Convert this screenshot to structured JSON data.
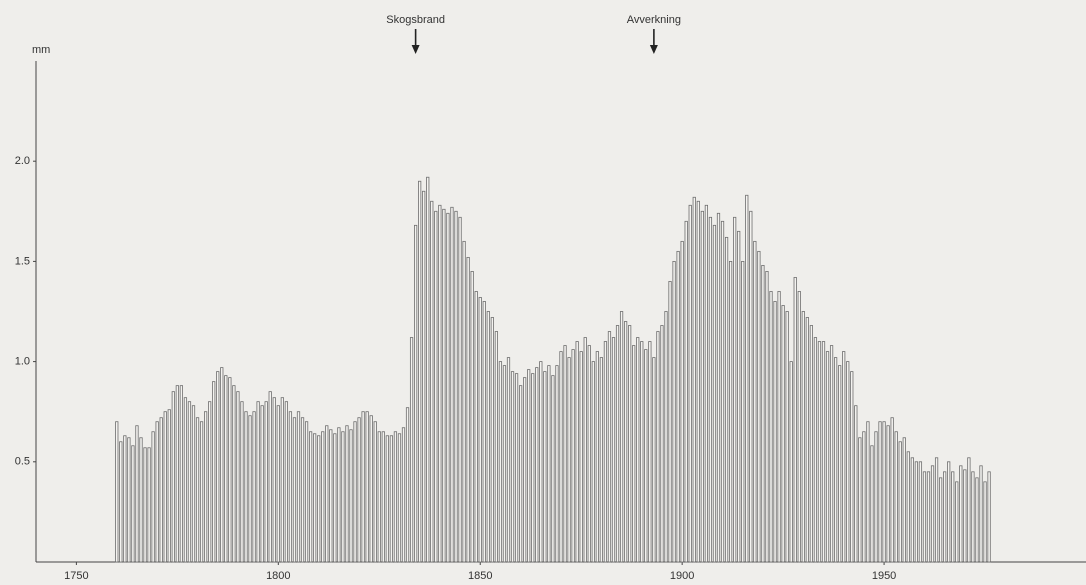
{
  "chart_data": {
    "type": "bar",
    "ylabel": "mm",
    "x": [
      1760,
      1761,
      1762,
      1763,
      1764,
      1765,
      1766,
      1767,
      1768,
      1769,
      1770,
      1771,
      1772,
      1773,
      1774,
      1775,
      1776,
      1777,
      1778,
      1779,
      1780,
      1781,
      1782,
      1783,
      1784,
      1785,
      1786,
      1787,
      1788,
      1789,
      1790,
      1791,
      1792,
      1793,
      1794,
      1795,
      1796,
      1797,
      1798,
      1799,
      1800,
      1801,
      1802,
      1803,
      1804,
      1805,
      1806,
      1807,
      1808,
      1809,
      1810,
      1811,
      1812,
      1813,
      1814,
      1815,
      1816,
      1817,
      1818,
      1819,
      1820,
      1821,
      1822,
      1823,
      1824,
      1825,
      1826,
      1827,
      1828,
      1829,
      1830,
      1831,
      1832,
      1833,
      1834,
      1835,
      1836,
      1837,
      1838,
      1839,
      1840,
      1841,
      1842,
      1843,
      1844,
      1845,
      1846,
      1847,
      1848,
      1849,
      1850,
      1851,
      1852,
      1853,
      1854,
      1855,
      1856,
      1857,
      1858,
      1859,
      1860,
      1861,
      1862,
      1863,
      1864,
      1865,
      1866,
      1867,
      1868,
      1869,
      1870,
      1871,
      1872,
      1873,
      1874,
      1875,
      1876,
      1877,
      1878,
      1879,
      1880,
      1881,
      1882,
      1883,
      1884,
      1885,
      1886,
      1887,
      1888,
      1889,
      1890,
      1891,
      1892,
      1893,
      1894,
      1895,
      1896,
      1897,
      1898,
      1899,
      1900,
      1901,
      1902,
      1903,
      1904,
      1905,
      1906,
      1907,
      1908,
      1909,
      1910,
      1911,
      1912,
      1913,
      1914,
      1915,
      1916,
      1917,
      1918,
      1919,
      1920,
      1921,
      1922,
      1923,
      1924,
      1925,
      1926,
      1927,
      1928,
      1929,
      1930,
      1931,
      1932,
      1933,
      1934,
      1935,
      1936,
      1937,
      1938,
      1939,
      1940,
      1941,
      1942,
      1943,
      1944,
      1945,
      1946,
      1947,
      1948,
      1949,
      1950,
      1951,
      1952,
      1953,
      1954,
      1955,
      1956,
      1957,
      1958,
      1959,
      1960,
      1961,
      1962,
      1963,
      1964,
      1965,
      1966,
      1967,
      1968,
      1969,
      1970,
      1971,
      1972,
      1973,
      1974,
      1975,
      1976
    ],
    "values": [
      0.7,
      0.6,
      0.63,
      0.62,
      0.58,
      0.68,
      0.62,
      0.57,
      0.57,
      0.65,
      0.7,
      0.72,
      0.75,
      0.76,
      0.85,
      0.88,
      0.88,
      0.82,
      0.8,
      0.78,
      0.72,
      0.7,
      0.75,
      0.8,
      0.9,
      0.95,
      0.97,
      0.93,
      0.92,
      0.88,
      0.85,
      0.8,
      0.75,
      0.73,
      0.75,
      0.8,
      0.78,
      0.8,
      0.85,
      0.82,
      0.78,
      0.82,
      0.8,
      0.75,
      0.72,
      0.75,
      0.72,
      0.7,
      0.65,
      0.64,
      0.63,
      0.65,
      0.68,
      0.66,
      0.64,
      0.67,
      0.65,
      0.68,
      0.66,
      0.7,
      0.72,
      0.75,
      0.75,
      0.73,
      0.7,
      0.65,
      0.65,
      0.63,
      0.63,
      0.65,
      0.64,
      0.67,
      0.77,
      1.12,
      1.68,
      1.9,
      1.85,
      1.92,
      1.8,
      1.75,
      1.78,
      1.76,
      1.74,
      1.77,
      1.75,
      1.72,
      1.6,
      1.52,
      1.45,
      1.35,
      1.32,
      1.3,
      1.25,
      1.22,
      1.15,
      1.0,
      0.98,
      1.02,
      0.95,
      0.94,
      0.88,
      0.92,
      0.96,
      0.94,
      0.97,
      1.0,
      0.95,
      0.98,
      0.93,
      0.98,
      1.05,
      1.08,
      1.02,
      1.06,
      1.1,
      1.05,
      1.12,
      1.08,
      1.0,
      1.05,
      1.02,
      1.1,
      1.15,
      1.12,
      1.18,
      1.25,
      1.2,
      1.18,
      1.08,
      1.12,
      1.1,
      1.06,
      1.1,
      1.02,
      1.15,
      1.18,
      1.25,
      1.4,
      1.5,
      1.55,
      1.6,
      1.7,
      1.78,
      1.82,
      1.8,
      1.75,
      1.78,
      1.72,
      1.68,
      1.74,
      1.7,
      1.62,
      1.5,
      1.72,
      1.65,
      1.5,
      1.83,
      1.75,
      1.6,
      1.55,
      1.48,
      1.45,
      1.35,
      1.3,
      1.35,
      1.28,
      1.25,
      1.0,
      1.42,
      1.35,
      1.25,
      1.22,
      1.18,
      1.12,
      1.1,
      1.1,
      1.05,
      1.08,
      1.02,
      0.98,
      1.05,
      1.0,
      0.95,
      0.78,
      0.62,
      0.65,
      0.7,
      0.58,
      0.65,
      0.7,
      0.7,
      0.68,
      0.72,
      0.65,
      0.6,
      0.62,
      0.55,
      0.52,
      0.5,
      0.5,
      0.45,
      0.45,
      0.48,
      0.52,
      0.42,
      0.45,
      0.5,
      0.45,
      0.4,
      0.48,
      0.46,
      0.52,
      0.45,
      0.42,
      0.48,
      0.4,
      0.45
    ],
    "color": "#f4f3f0",
    "xlim": [
      1740,
      2000
    ],
    "ylim": [
      0,
      2.5
    ],
    "xticks": [
      1750,
      1800,
      1850,
      1900,
      1950
    ],
    "yticks": [
      0.5,
      {
        "value": 1,
        "label": "1.0"
      },
      1.5,
      {
        "value": 2,
        "label": "2.0"
      }
    ],
    "annotations": [
      {
        "text": "Skogsbrand",
        "x": 1834
      },
      {
        "text": "Avverkning",
        "x": 1893
      }
    ]
  }
}
